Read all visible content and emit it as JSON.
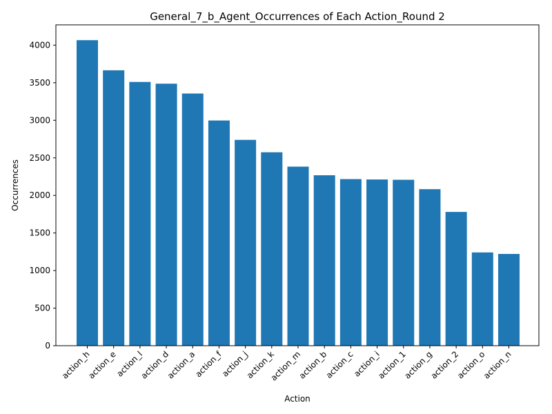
{
  "chart_data": {
    "type": "bar",
    "title": "General_7_b_Agent_Occurrences of Each Action_Round 2",
    "xlabel": "Action",
    "ylabel": "Occurrences",
    "categories": [
      "action_h",
      "action_e",
      "action_l",
      "action_d",
      "action_a",
      "action_f",
      "action_j",
      "action_k",
      "action_m",
      "action_b",
      "action_c",
      "action_i",
      "action_1",
      "action_g",
      "action_2",
      "action_o",
      "action_n"
    ],
    "values": [
      4066,
      3665,
      3510,
      3487,
      3356,
      2997,
      2739,
      2574,
      2383,
      2268,
      2217,
      2212,
      2208,
      2083,
      1780,
      1241,
      1221
    ],
    "ylim": [
      0,
      4270
    ],
    "yticks": [
      0,
      500,
      1000,
      1500,
      2000,
      2500,
      3000,
      3500,
      4000
    ],
    "ytick_labels": [
      "0",
      "500",
      "1000",
      "1500",
      "2000",
      "2500",
      "3000",
      "3500",
      "4000"
    ],
    "bar_color": "#1f77b4",
    "grid": false,
    "legend": "none"
  }
}
